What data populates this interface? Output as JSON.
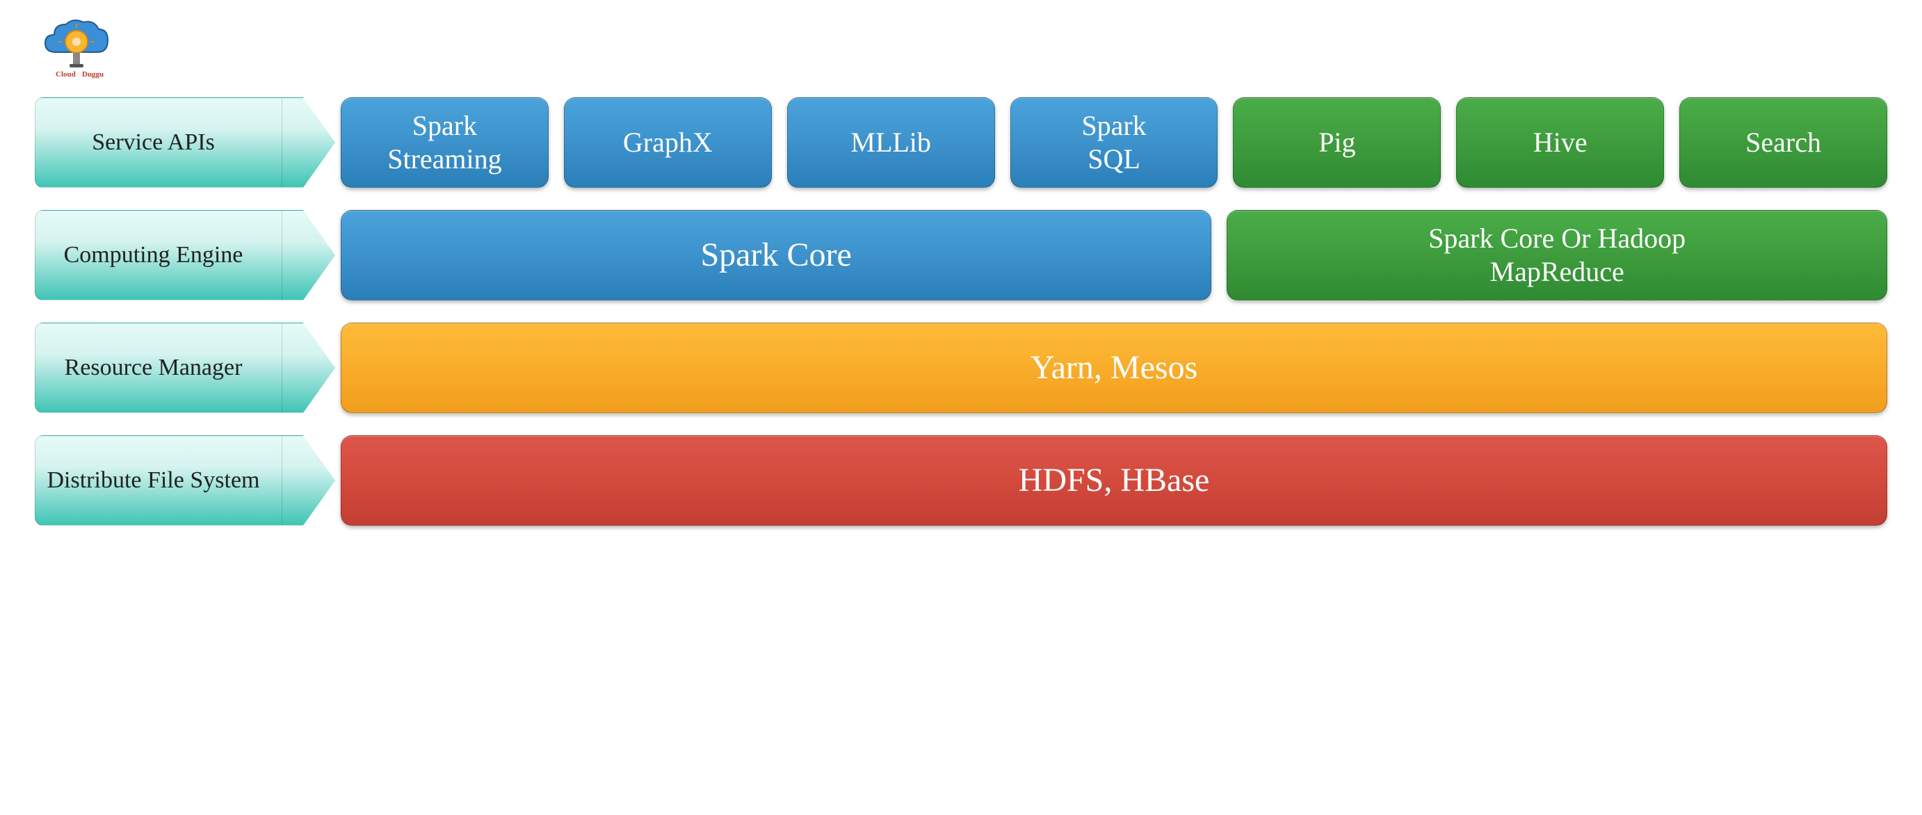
{
  "colors": {
    "teal_gradient": "linear-gradient(to bottom, #e6fbf8 0%, #d5f3ef 35%, #3fc5b5 100%)",
    "blue_gradient": "linear-gradient(to bottom, #4ba3db 0%, #3d92cb 50%, #2b7fb9 100%)",
    "green_gradient": "linear-gradient(to bottom, #4aad48 0%, #3e9c3d 50%, #2f8a32 100%)",
    "orange_gradient": "linear-gradient(to bottom, #fdbb3a 0%, #f8ad2a 50%, #f19d1e 100%)",
    "red_gradient": "linear-gradient(to bottom, #dd5649 0%, #d34a3d 50%, #c43e33 100%)"
  },
  "rows": [
    {
      "label": "Service APIs",
      "boxes": [
        {
          "text": "Spark\nStreaming",
          "color": "blue",
          "flex": 1
        },
        {
          "text": "GraphX",
          "color": "blue",
          "flex": 1
        },
        {
          "text": "MLLib",
          "color": "blue",
          "flex": 1
        },
        {
          "text": "Spark\nSQL",
          "color": "blue",
          "flex": 1
        },
        {
          "text": "Pig",
          "color": "green",
          "flex": 1
        },
        {
          "text": "Hive",
          "color": "green",
          "flex": 1
        },
        {
          "text": "Search",
          "color": "green",
          "flex": 1
        }
      ]
    },
    {
      "label": "Computing\nEngine",
      "boxes": [
        {
          "text": "Spark Core",
          "color": "blue",
          "flex": 4,
          "large": true
        },
        {
          "text": "Spark Core Or Hadoop\nMapReduce",
          "color": "green",
          "flex": 3
        }
      ]
    },
    {
      "label": "Resource\nManager",
      "boxes": [
        {
          "text": "Yarn, Mesos",
          "color": "orange",
          "flex": 1,
          "large": true
        }
      ]
    },
    {
      "label": "Distribute\nFile System",
      "boxes": [
        {
          "text": "HDFS, HBase",
          "color": "red",
          "flex": 1,
          "large": true
        }
      ]
    }
  ],
  "logo": {
    "text_top": "Cloud",
    "text_bottom": "Duggu",
    "text_color": "#c0392b",
    "cloud_fill": "#3498db"
  }
}
